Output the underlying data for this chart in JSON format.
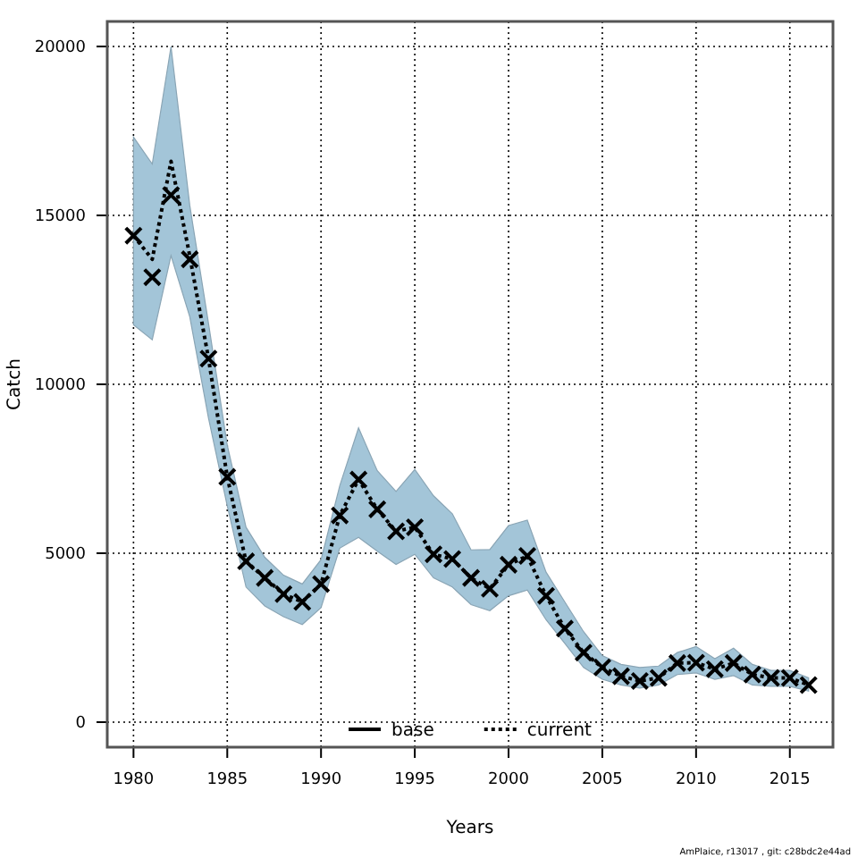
{
  "chart_data": {
    "type": "line",
    "xlabel": "Years",
    "ylabel": "Catch",
    "x": [
      1980,
      1981,
      1982,
      1983,
      1984,
      1985,
      1986,
      1987,
      1988,
      1989,
      1990,
      1991,
      1992,
      1993,
      1994,
      1995,
      1996,
      1997,
      1998,
      1999,
      2000,
      2001,
      2002,
      2003,
      2004,
      2005,
      2006,
      2007,
      2008,
      2009,
      2010,
      2011,
      2012,
      2013,
      2014,
      2015,
      2016
    ],
    "xlim": [
      1978.6,
      2017.3
    ],
    "xticks": [
      1980,
      1985,
      1990,
      1995,
      2000,
      2005,
      2010,
      2015
    ],
    "ylim": [
      -740,
      20740
    ],
    "yticks": [
      0,
      5000,
      10000,
      15000,
      20000
    ],
    "grid": true,
    "legend": "bottom",
    "series": [
      {
        "name": "base",
        "color": "#000000",
        "line_style": "solid",
        "values": [
          null,
          null,
          null,
          null,
          null,
          null,
          null,
          null,
          null,
          null,
          null,
          null,
          null,
          null,
          null,
          null,
          null,
          null,
          null,
          null,
          null,
          null,
          null,
          null,
          null,
          null,
          null,
          null,
          null,
          null,
          null,
          null,
          null,
          null,
          null,
          null,
          null
        ]
      },
      {
        "name": "current",
        "color": "#000000",
        "line_style": "dotted",
        "values": [
          14400,
          13700,
          16600,
          13800,
          10760,
          7260,
          4760,
          4270,
          3790,
          3560,
          4090,
          6120,
          7180,
          6300,
          5650,
          5770,
          4970,
          4830,
          4270,
          3950,
          4660,
          4920,
          3740,
          2770,
          2060,
          1620,
          1360,
          1220,
          1310,
          1750,
          1760,
          1570,
          1750,
          1410,
          1310,
          1310,
          1100
        ],
        "upper": [
          17320,
          16520,
          20000,
          15300,
          11800,
          8200,
          5770,
          4880,
          4350,
          4090,
          4810,
          7000,
          8710,
          7440,
          6830,
          7480,
          6700,
          6170,
          5100,
          5110,
          5820,
          5980,
          4440,
          3560,
          2680,
          1970,
          1710,
          1620,
          1660,
          2060,
          2240,
          1880,
          2190,
          1710,
          1530,
          1530,
          1310
        ],
        "lower": [
          11760,
          11320,
          13810,
          12000,
          9000,
          6400,
          4000,
          3440,
          3120,
          2890,
          3390,
          5150,
          5470,
          5060,
          4670,
          4970,
          4270,
          4000,
          3480,
          3300,
          3740,
          3910,
          3030,
          2330,
          1620,
          1270,
          1100,
          1010,
          1100,
          1410,
          1460,
          1270,
          1380,
          1100,
          1060,
          1060,
          920
        ]
      },
      {
        "type": "scatter",
        "marker": "cross",
        "color": "#000000",
        "values": [
          14400,
          13170,
          15600,
          13700,
          10760,
          7260,
          4760,
          4270,
          3790,
          3560,
          4090,
          6120,
          7180,
          6300,
          5650,
          5770,
          4970,
          4830,
          4270,
          3950,
          4660,
          4920,
          3740,
          2770,
          2060,
          1620,
          1360,
          1220,
          1310,
          1750,
          1760,
          1570,
          1750,
          1410,
          1310,
          1310,
          1100
        ]
      }
    ],
    "annotations": [
      "AmPlaice, r13017 , git: c28bdc2e44ad"
    ]
  }
}
